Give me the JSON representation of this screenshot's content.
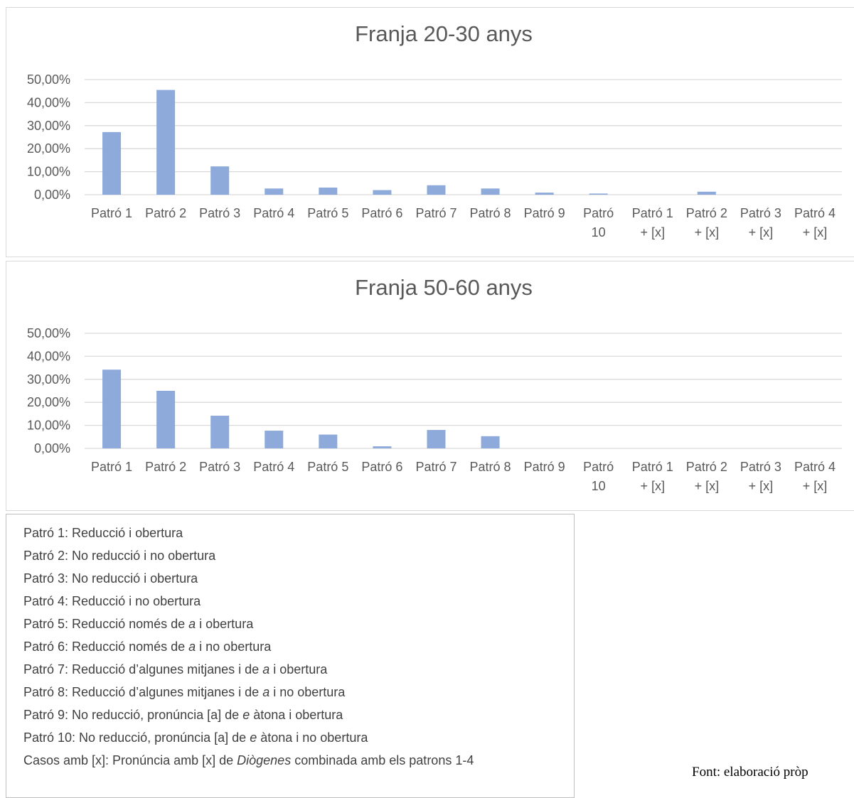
{
  "colors": {
    "bar": "#8eaadb",
    "grid": "#d9d9d9",
    "text": "#595959",
    "frame": "#d9d9d9"
  },
  "chart_data": [
    {
      "type": "bar",
      "title": "Franja 20-30 anys",
      "xlabel": "",
      "ylabel": "",
      "ylim": [
        0,
        50
      ],
      "y_ticks": [
        "0,00%",
        "10,00%",
        "20,00%",
        "30,00%",
        "40,00%",
        "50,00%"
      ],
      "grid": true,
      "categories": [
        [
          "Patró 1"
        ],
        [
          "Patró 2"
        ],
        [
          "Patró 3"
        ],
        [
          "Patró 4"
        ],
        [
          "Patró 5"
        ],
        [
          "Patró 6"
        ],
        [
          "Patró 7"
        ],
        [
          "Patró 8"
        ],
        [
          "Patró 9"
        ],
        [
          "Patró",
          "10"
        ],
        [
          "Patró 1",
          "+ [x]"
        ],
        [
          "Patró 2",
          "+ [x]"
        ],
        [
          "Patró 3",
          "+ [x]"
        ],
        [
          "Patró 4",
          "+ [x]"
        ]
      ],
      "values": [
        27.2,
        45.5,
        12.3,
        2.7,
        3.1,
        2.0,
        4.1,
        2.7,
        0.9,
        0.5,
        0,
        1.3,
        0,
        0
      ]
    },
    {
      "type": "bar",
      "title": "Franja 50-60 anys",
      "xlabel": "",
      "ylabel": "",
      "ylim": [
        0,
        50
      ],
      "y_ticks": [
        "0,00%",
        "10,00%",
        "20,00%",
        "30,00%",
        "40,00%",
        "50,00%"
      ],
      "grid": true,
      "categories": [
        [
          "Patró 1"
        ],
        [
          "Patró 2"
        ],
        [
          "Patró 3"
        ],
        [
          "Patró 4"
        ],
        [
          "Patró 5"
        ],
        [
          "Patró 6"
        ],
        [
          "Patró 7"
        ],
        [
          "Patró 8"
        ],
        [
          "Patró 9"
        ],
        [
          "Patró",
          "10"
        ],
        [
          "Patró 1",
          "+ [x]"
        ],
        [
          "Patró 2",
          "+ [x]"
        ],
        [
          "Patró 3",
          "+ [x]"
        ],
        [
          "Patró 4",
          "+ [x]"
        ]
      ],
      "values": [
        34.2,
        25.0,
        14.2,
        7.7,
        6.0,
        0.9,
        8.0,
        5.3,
        0,
        0,
        0,
        0,
        0,
        0
      ]
    }
  ],
  "legend": {
    "lines": [
      {
        "prefix": "Patró 1: Reducció i obertura",
        "italic": "",
        "suffix": ""
      },
      {
        "prefix": "Patró 2: No reducció i no obertura",
        "italic": "",
        "suffix": ""
      },
      {
        "prefix": "Patró 3: No reducció i obertura",
        "italic": "",
        "suffix": ""
      },
      {
        "prefix": "Patró 4: Reducció i no obertura",
        "italic": "",
        "suffix": ""
      },
      {
        "prefix": "Patró 5: Reducció només de ",
        "italic": "a",
        "suffix": " i obertura"
      },
      {
        "prefix": "Patró 6: Reducció només de ",
        "italic": "a",
        "suffix": " i no obertura"
      },
      {
        "prefix": "Patró 7: Reducció d’algunes mitjanes i de ",
        "italic": "a",
        "suffix": " i obertura"
      },
      {
        "prefix": "Patró 8: Reducció d’algunes mitjanes i de ",
        "italic": "a",
        "suffix": " i no obertura"
      },
      {
        "prefix": "Patró 9: No reducció, pronúncia [a] de ",
        "italic": "e",
        "suffix": " àtona i obertura"
      },
      {
        "prefix": "Patró 10: No reducció, pronúncia [a] de ",
        "italic": "e",
        "suffix": " àtona i no obertura"
      },
      {
        "prefix": "Casos amb [x]: Pronúncia amb [x] de ",
        "italic": "Diògenes",
        "suffix": " combinada amb els patrons 1-4"
      }
    ]
  },
  "source": "Font: elaboració pròp"
}
